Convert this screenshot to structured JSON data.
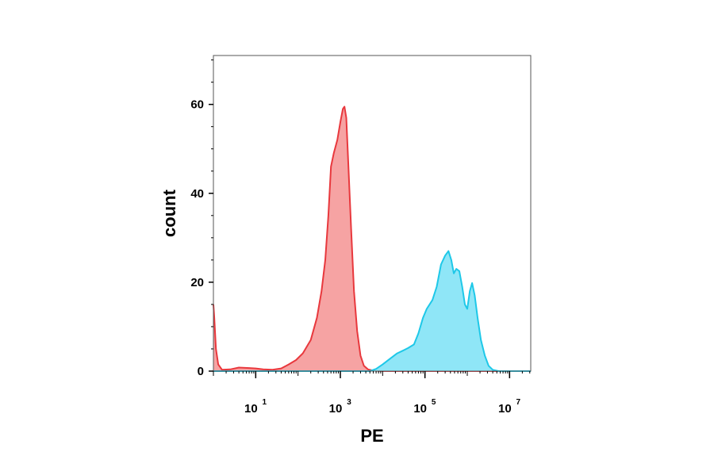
{
  "chart_data": {
    "type": "area",
    "xlabel": "PE",
    "ylabel": "count",
    "x_scale": "log",
    "xlim": [
      1,
      31622777
    ],
    "ylim": [
      0,
      71
    ],
    "grid": false,
    "legend": "none",
    "y_ticks": [
      {
        "value": 0,
        "label": "0"
      },
      {
        "value": 20,
        "label": "20"
      },
      {
        "value": 40,
        "label": "40"
      },
      {
        "value": 60,
        "label": "60"
      }
    ],
    "x_ticks": [
      {
        "value": 10,
        "base": "10",
        "exp": "1"
      },
      {
        "value": 1000,
        "base": "10",
        "exp": "3"
      },
      {
        "value": 100000,
        "base": "10",
        "exp": "5"
      },
      {
        "value": 10000000,
        "base": "10",
        "exp": "7"
      }
    ],
    "series": [
      {
        "color": "#e8383d",
        "fill": "#f6a3a3",
        "points": [
          [
            1,
            15
          ],
          [
            1.05,
            12
          ],
          [
            1.15,
            5
          ],
          [
            1.3,
            1.5
          ],
          [
            1.6,
            0.3
          ],
          [
            2.5,
            0.4
          ],
          [
            4,
            0.8
          ],
          [
            7,
            0.7
          ],
          [
            10,
            0.6
          ],
          [
            15,
            0.4
          ],
          [
            25,
            0.3
          ],
          [
            40,
            0.6
          ],
          [
            60,
            1.5
          ],
          [
            90,
            2.5
          ],
          [
            130,
            4
          ],
          [
            200,
            7
          ],
          [
            280,
            12
          ],
          [
            360,
            18
          ],
          [
            440,
            25
          ],
          [
            520,
            35
          ],
          [
            600,
            46
          ],
          [
            700,
            49
          ],
          [
            850,
            52
          ],
          [
            1000,
            56
          ],
          [
            1150,
            59
          ],
          [
            1250,
            59.5
          ],
          [
            1380,
            57
          ],
          [
            1550,
            46
          ],
          [
            1800,
            32
          ],
          [
            2100,
            18
          ],
          [
            2500,
            9
          ],
          [
            3000,
            3.5
          ],
          [
            3600,
            1.2
          ],
          [
            4500,
            0.4
          ],
          [
            6000,
            0.1
          ],
          [
            10000,
            0
          ],
          [
            31622777,
            0
          ]
        ]
      },
      {
        "color": "#1ec8e8",
        "fill": "#8fe6f7",
        "points": [
          [
            1,
            0
          ],
          [
            5000,
            0
          ],
          [
            7000,
            0.5
          ],
          [
            10000,
            1.5
          ],
          [
            15000,
            2.8
          ],
          [
            22000,
            4
          ],
          [
            30000,
            4.6
          ],
          [
            40000,
            5.2
          ],
          [
            55000,
            6
          ],
          [
            70000,
            8.5
          ],
          [
            90000,
            12
          ],
          [
            110000,
            14
          ],
          [
            150000,
            16
          ],
          [
            190000,
            19
          ],
          [
            240000,
            24
          ],
          [
            300000,
            26
          ],
          [
            360000,
            27
          ],
          [
            420000,
            25
          ],
          [
            480000,
            22
          ],
          [
            550000,
            23
          ],
          [
            650000,
            22.5
          ],
          [
            760000,
            19
          ],
          [
            880000,
            15
          ],
          [
            1000000,
            14
          ],
          [
            1150000,
            18
          ],
          [
            1300000,
            19.8
          ],
          [
            1500000,
            17
          ],
          [
            1750000,
            12
          ],
          [
            2100000,
            7
          ],
          [
            2600000,
            3.5
          ],
          [
            3200000,
            1.2
          ],
          [
            4000000,
            0.3
          ],
          [
            5500000,
            0
          ],
          [
            31622777,
            0
          ]
        ]
      }
    ]
  }
}
